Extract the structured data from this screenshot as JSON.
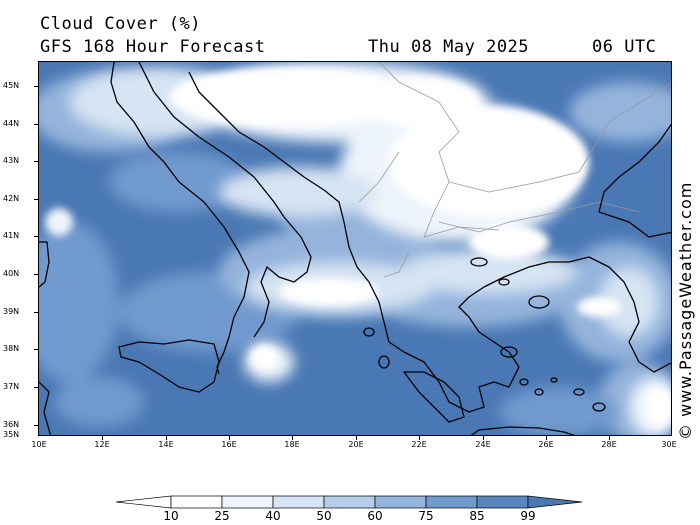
{
  "header": {
    "title": "Cloud Cover (%)",
    "subtitle": "GFS 168 Hour Forecast",
    "date": "Thu 08 May 2025",
    "time": "06 UTC"
  },
  "watermark": "© www.PassageWeather.com",
  "axes": {
    "lat_labels": [
      "45N",
      "44N",
      "43N",
      "42N",
      "41N",
      "40N",
      "39N",
      "38N",
      "37N",
      "36N",
      "35N"
    ],
    "lon_labels": [
      "10E",
      "12E",
      "14E",
      "16E",
      "18E",
      "20E",
      "22E",
      "24E",
      "26E",
      "28E",
      "30E"
    ]
  },
  "colorbar": {
    "labels": [
      "10",
      "25",
      "40",
      "50",
      "60",
      "75",
      "85",
      "99"
    ],
    "colors": [
      "#ffffff",
      "#eef4fb",
      "#d6e4f3",
      "#b6cde9",
      "#94b4dc",
      "#719ace",
      "#5a86c0",
      "#4a78b4"
    ]
  },
  "colors": {
    "ocean_overcast": "#4a78b4",
    "clear": "#ffffff",
    "coastline": "#000000",
    "border": "#9a9a9a"
  }
}
